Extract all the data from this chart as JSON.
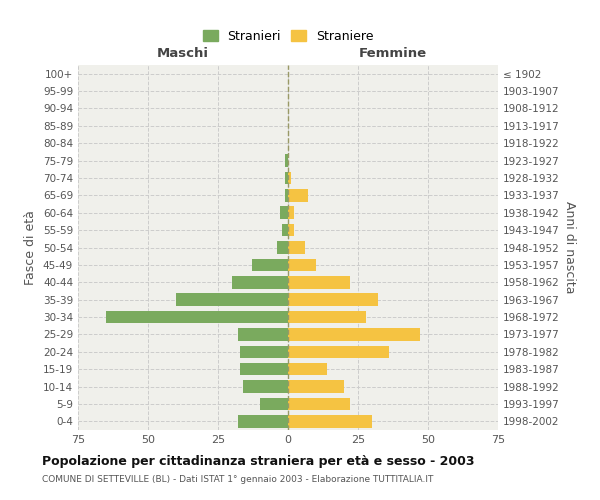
{
  "age_groups": [
    "100+",
    "95-99",
    "90-94",
    "85-89",
    "80-84",
    "75-79",
    "70-74",
    "65-69",
    "60-64",
    "55-59",
    "50-54",
    "45-49",
    "40-44",
    "35-39",
    "30-34",
    "25-29",
    "20-24",
    "15-19",
    "10-14",
    "5-9",
    "0-4"
  ],
  "birth_years": [
    "≤ 1902",
    "1903-1907",
    "1908-1912",
    "1913-1917",
    "1918-1922",
    "1923-1927",
    "1928-1932",
    "1933-1937",
    "1938-1942",
    "1943-1947",
    "1948-1952",
    "1953-1957",
    "1958-1962",
    "1963-1967",
    "1968-1972",
    "1973-1977",
    "1978-1982",
    "1983-1987",
    "1988-1992",
    "1993-1997",
    "1998-2002"
  ],
  "males": [
    0,
    0,
    0,
    0,
    0,
    1,
    1,
    1,
    3,
    2,
    4,
    13,
    20,
    40,
    65,
    18,
    17,
    17,
    16,
    10,
    18
  ],
  "females": [
    0,
    0,
    0,
    0,
    0,
    0,
    1,
    7,
    2,
    2,
    6,
    10,
    22,
    32,
    28,
    47,
    36,
    14,
    20,
    22,
    30
  ],
  "male_color": "#7aaa5e",
  "female_color": "#f5c342",
  "xlim": 75,
  "title": "Popolazione per cittadinanza straniera per età e sesso - 2003",
  "subtitle": "COMUNE DI SETTEVILLE (BL) - Dati ISTAT 1° gennaio 2003 - Elaborazione TUTTITALIA.IT",
  "ylabel_left": "Fasce di età",
  "ylabel_right": "Anni di nascita",
  "label_maschi": "Maschi",
  "label_femmine": "Femmine",
  "legend_stranieri": "Stranieri",
  "legend_straniere": "Straniere",
  "bg_color": "#f0f0eb",
  "grid_color": "#cccccc",
  "dashed_color": "#999966"
}
